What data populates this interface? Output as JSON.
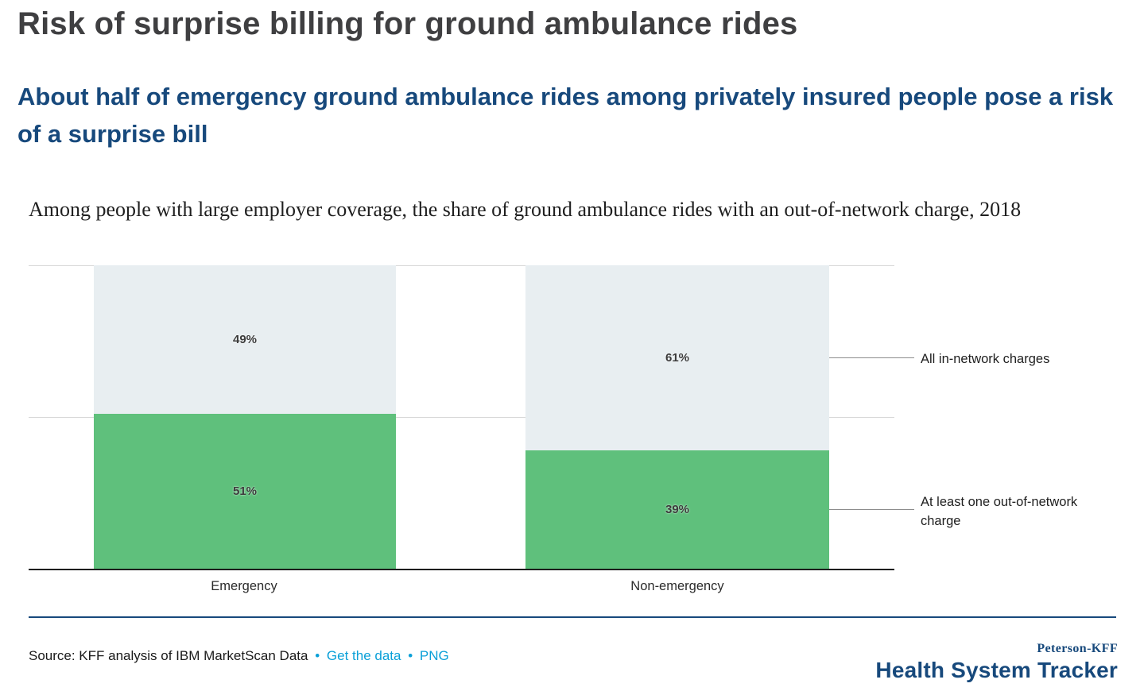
{
  "page": {
    "title": "Risk of surprise billing for ground ambulance rides",
    "subtitle": "About half of emergency ground ambulance rides among privately insured people pose a risk of a surprise bill",
    "description": "Among people with large employer coverage, the share of ground ambulance rides with an out-of-network charge, 2018"
  },
  "chart_data": {
    "type": "bar",
    "stacked": true,
    "title": "Among people with large employer coverage, the share of ground ambulance rides with an out-of-network charge, 2018",
    "categories": [
      "Emergency",
      "Non-emergency"
    ],
    "series": [
      {
        "name": "At least one out-of-network charge",
        "values": [
          51,
          39
        ],
        "color": "#5fc07c"
      },
      {
        "name": "All in-network charges",
        "values": [
          49,
          61
        ],
        "color": "#e8eef1"
      }
    ],
    "unit": "%",
    "ylim": [
      0,
      100
    ],
    "gridlines": [
      0,
      50,
      100
    ],
    "legend_position": "right-annotations",
    "annotations": [
      {
        "text": "All in-network charges"
      },
      {
        "text": "At least one out-of-network charge"
      }
    ]
  },
  "footer": {
    "source": "Source: KFF analysis of IBM MarketScan Data",
    "separator": "•",
    "links": [
      {
        "label": "Get the data"
      },
      {
        "label": "PNG"
      }
    ],
    "logo": {
      "top": "Peterson-KFF",
      "bottom": "Health System Tracker"
    }
  },
  "colors": {
    "accent_blue": "#17497c",
    "link_blue": "#0aa0d8",
    "bar_green": "#5fc07c",
    "bar_gray": "#e8eef1",
    "title_gray": "#3f3f41"
  }
}
